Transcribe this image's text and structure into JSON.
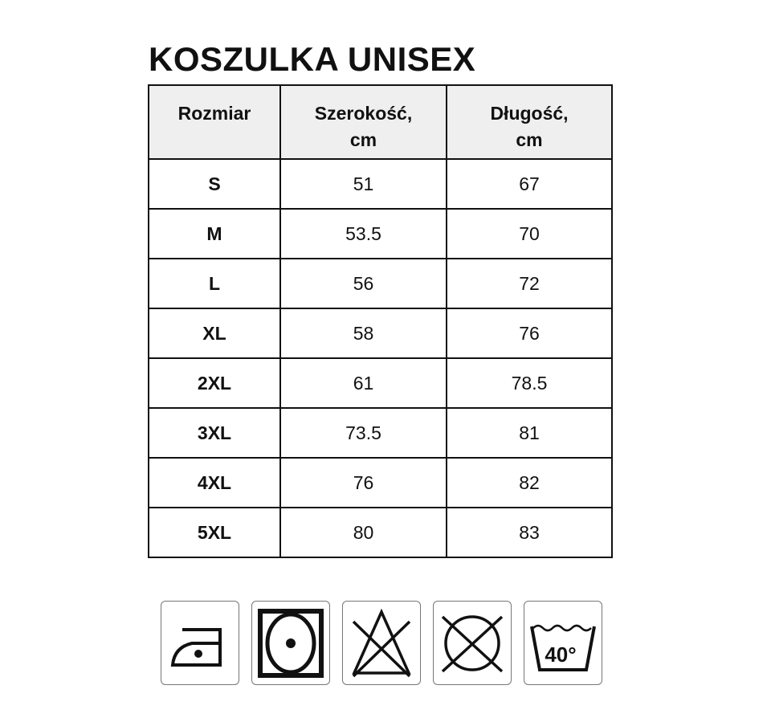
{
  "title": "KOSZULKA UNISEX",
  "table": {
    "headers": [
      [
        "Rozmiar",
        ""
      ],
      [
        "Szerokość,",
        "cm"
      ],
      [
        "Długość,",
        "cm"
      ]
    ],
    "rows": [
      [
        "S",
        "51",
        "67"
      ],
      [
        "M",
        "53.5",
        "70"
      ],
      [
        "L",
        "56",
        "72"
      ],
      [
        "XL",
        "58",
        "76"
      ],
      [
        "2XL",
        "61",
        "78.5"
      ],
      [
        "3XL",
        "73.5",
        "81"
      ],
      [
        "4XL",
        "76",
        "82"
      ],
      [
        "5XL",
        "80",
        "83"
      ]
    ]
  },
  "care_icons": [
    {
      "icon": "iron-one-dot-icon"
    },
    {
      "icon": "tumble-dry-icon"
    },
    {
      "icon": "do-not-bleach-icon"
    },
    {
      "icon": "do-not-dry-clean-icon"
    },
    {
      "icon": "wash-40-icon",
      "label": "40°"
    }
  ]
}
